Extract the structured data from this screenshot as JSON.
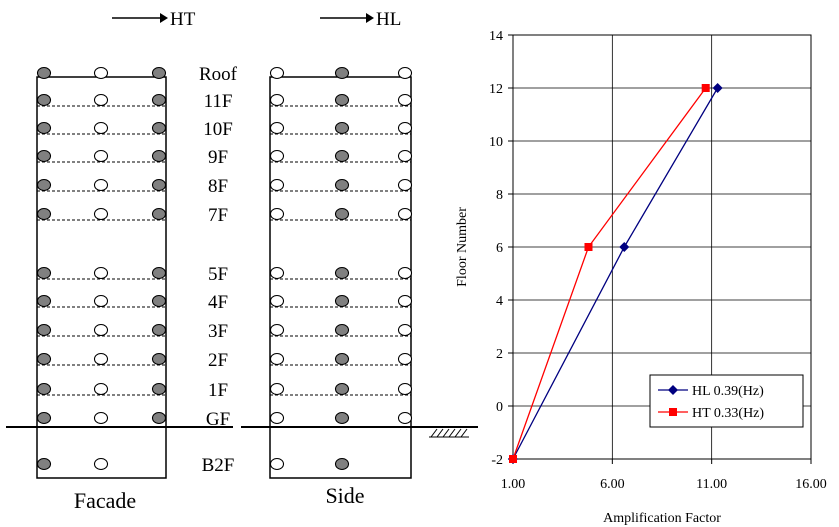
{
  "diagram": {
    "arrow_facade_label": "HT",
    "arrow_side_label": "HL",
    "floor_labels": [
      "Roof",
      "11F",
      "10F",
      "9F",
      "8F",
      "7F",
      "5F",
      "4F",
      "3F",
      "2F",
      "1F",
      "GF",
      "B2F"
    ],
    "facade_caption": "Facade",
    "side_caption": "Side"
  },
  "chart_data": {
    "type": "line",
    "xlabel": "Amplification Factor",
    "ylabel": "Floor Number",
    "xlim": [
      1,
      16
    ],
    "ylim": [
      -2,
      14
    ],
    "x_ticks": [
      "1.00",
      "6.00",
      "11.00",
      "16.00"
    ],
    "x_tick_values": [
      1,
      6,
      11,
      16
    ],
    "y_ticks": [
      "-2",
      "0",
      "2",
      "4",
      "6",
      "8",
      "10",
      "12",
      "14"
    ],
    "y_tick_values": [
      -2,
      0,
      2,
      4,
      6,
      8,
      10,
      12,
      14
    ],
    "grid": true,
    "legend_position": "bottom-right",
    "series": [
      {
        "name": "HL 0.39(Hz)",
        "color": "#000080",
        "marker": "diamond",
        "x": [
          1.0,
          6.6,
          11.3
        ],
        "y": [
          -2,
          6,
          12
        ]
      },
      {
        "name": "HT 0.33(Hz)",
        "color": "#ff0000",
        "marker": "square",
        "x": [
          1.0,
          4.8,
          10.7
        ],
        "y": [
          -2,
          6,
          12
        ]
      }
    ]
  }
}
